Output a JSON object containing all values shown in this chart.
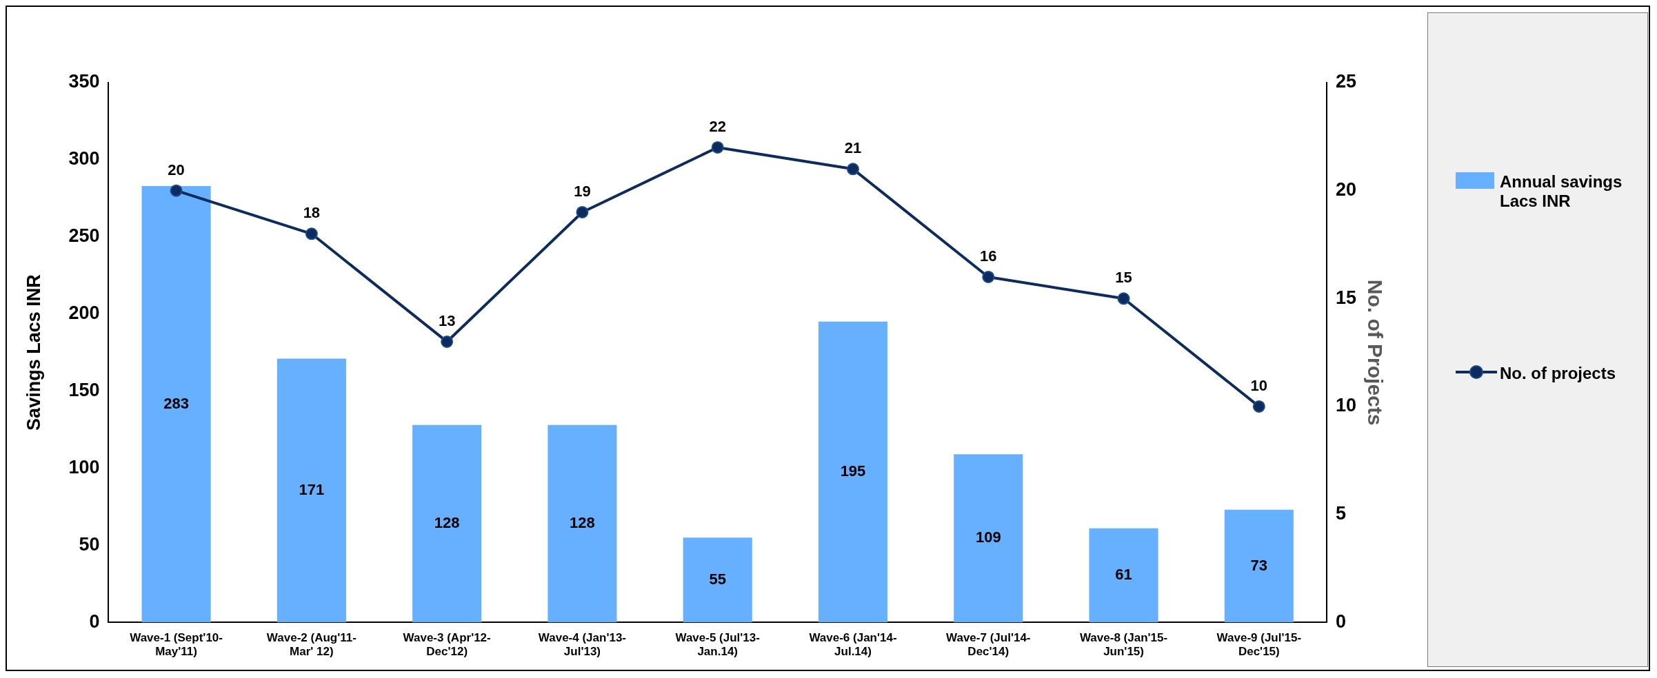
{
  "chart_data": {
    "type": "bar",
    "categories": [
      "Wave-1 (Sept'10-May'11)",
      "Wave-2 (Aug'11-Mar' 12)",
      "Wave-3 (Apr'12-Dec'12)",
      "Wave-4 (Jan'13-Jul'13)",
      "Wave-5 (Jul'13-Jan.14)",
      "Wave-6 (Jan'14-Jul.14)",
      "Wave-7 (Jul'14-Dec'14)",
      "Wave-8 (Jan'15-Jun'15)",
      "Wave-9 (Jul'15-Dec'15)"
    ],
    "series": [
      {
        "name": "Annual savings Lacs INR",
        "color": "#66b0ff",
        "values": [
          283,
          171,
          128,
          128,
          55,
          195,
          109,
          61,
          73
        ]
      },
      {
        "name": "No. of projects",
        "type": "line",
        "axis": "y2",
        "color": "#0d2b5c",
        "values": [
          20,
          18,
          13,
          19,
          22,
          21,
          16,
          15,
          10
        ]
      }
    ],
    "ylabel": "Savings Lacs INR",
    "y2label": "No. of Projects",
    "ylim": [
      0,
      350
    ],
    "yticks": [
      0,
      50,
      100,
      150,
      200,
      250,
      300,
      350
    ],
    "y2lim": [
      0,
      25
    ],
    "y2ticks": [
      0,
      5,
      10,
      15,
      20,
      25
    ],
    "data_labels": true,
    "legend": "right",
    "grid": false,
    "marker": "circle",
    "line_style": "solid"
  }
}
